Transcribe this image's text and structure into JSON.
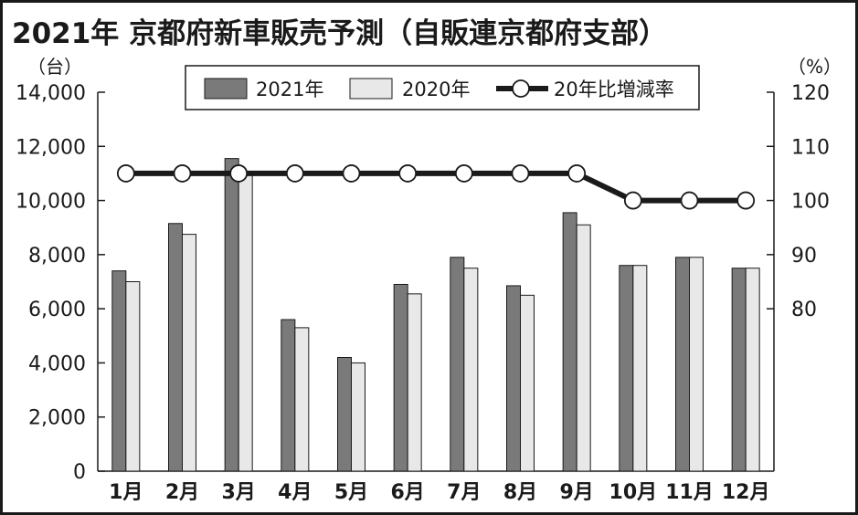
{
  "title": "2021年  京都府新車販売予測（自販連京都府支部）",
  "colors": {
    "bar2021": "#7a7a7a",
    "bar2020": "#e8e8e8",
    "line": "#1a1a1a",
    "marker_fill": "#ffffff"
  },
  "chart_data": {
    "type": "bar",
    "title": "2021年  京都府新車販売予測（自販連京都府支部）",
    "categories": [
      "1月",
      "2月",
      "3月",
      "4月",
      "5月",
      "6月",
      "7月",
      "8月",
      "9月",
      "10月",
      "11月",
      "12月"
    ],
    "series": [
      {
        "name": "2021年",
        "kind": "bar",
        "axis": "left",
        "values": [
          7400,
          9150,
          11550,
          5600,
          4200,
          6900,
          7900,
          6850,
          9550,
          7600,
          7900,
          7500
        ]
      },
      {
        "name": "2020年",
        "kind": "bar",
        "axis": "left",
        "values": [
          7000,
          8750,
          11000,
          5300,
          4000,
          6550,
          7500,
          6500,
          9100,
          7600,
          7900,
          7500
        ]
      },
      {
        "name": "20年比増減率",
        "kind": "line",
        "axis": "right",
        "values": [
          105,
          105,
          105,
          105,
          105,
          105,
          105,
          105,
          105,
          100,
          100,
          100
        ]
      }
    ],
    "y_left": {
      "unit": "（台）",
      "ylim": [
        0,
        14000
      ],
      "ticks": [
        0,
        2000,
        4000,
        6000,
        8000,
        10000,
        12000,
        14000
      ],
      "tick_labels": [
        "0",
        "2,000",
        "4,000",
        "6,000",
        "8,000",
        "10,000",
        "12,000",
        "14,000"
      ]
    },
    "y_right": {
      "unit": "（%）",
      "ylim": [
        50,
        120
      ],
      "ticks": [
        80,
        90,
        100,
        110,
        120
      ],
      "tick_labels": [
        "80",
        "90",
        "100",
        "110",
        "120"
      ]
    },
    "legend": {
      "placement": "top-center",
      "items": [
        "2021年",
        "2020年",
        "20年比増減率"
      ]
    },
    "grid": false
  }
}
